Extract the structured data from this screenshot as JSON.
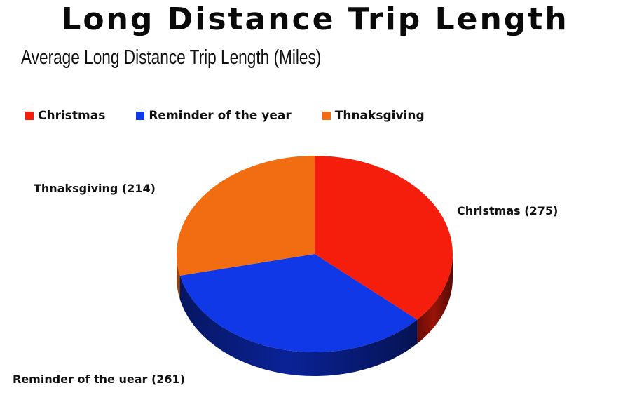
{
  "chart_data": {
    "type": "pie",
    "title": "Long Distance Trip Length",
    "subtitle": "Average Long Distance Trip Length (Miles)",
    "categories": [
      "Christmas",
      "Reminder of the year",
      "Thnaksgiving"
    ],
    "values": [
      275,
      261,
      214
    ],
    "slice_labels": [
      "Christmas (275)",
      "Reminder of the uear (261)",
      "Thnaksgiving (214)"
    ],
    "colors": [
      "#f51d0b",
      "#1138e6",
      "#f26c11"
    ],
    "side_colors": [
      "#9a1408",
      "#0a2296",
      "#a8480b"
    ],
    "legend_position": "top",
    "style": "3d"
  }
}
